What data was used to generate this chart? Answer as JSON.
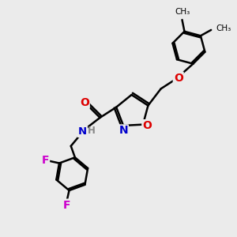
{
  "background_color": "#ebebeb",
  "bond_color": "#000000",
  "bond_width": 1.8,
  "atom_colors": {
    "O": "#dd0000",
    "N": "#0000cc",
    "F": "#cc00cc",
    "H": "#888888",
    "C": "#000000"
  },
  "font_size": 9.5,
  "fig_width": 3.0,
  "fig_height": 3.0,
  "dpi": 100
}
